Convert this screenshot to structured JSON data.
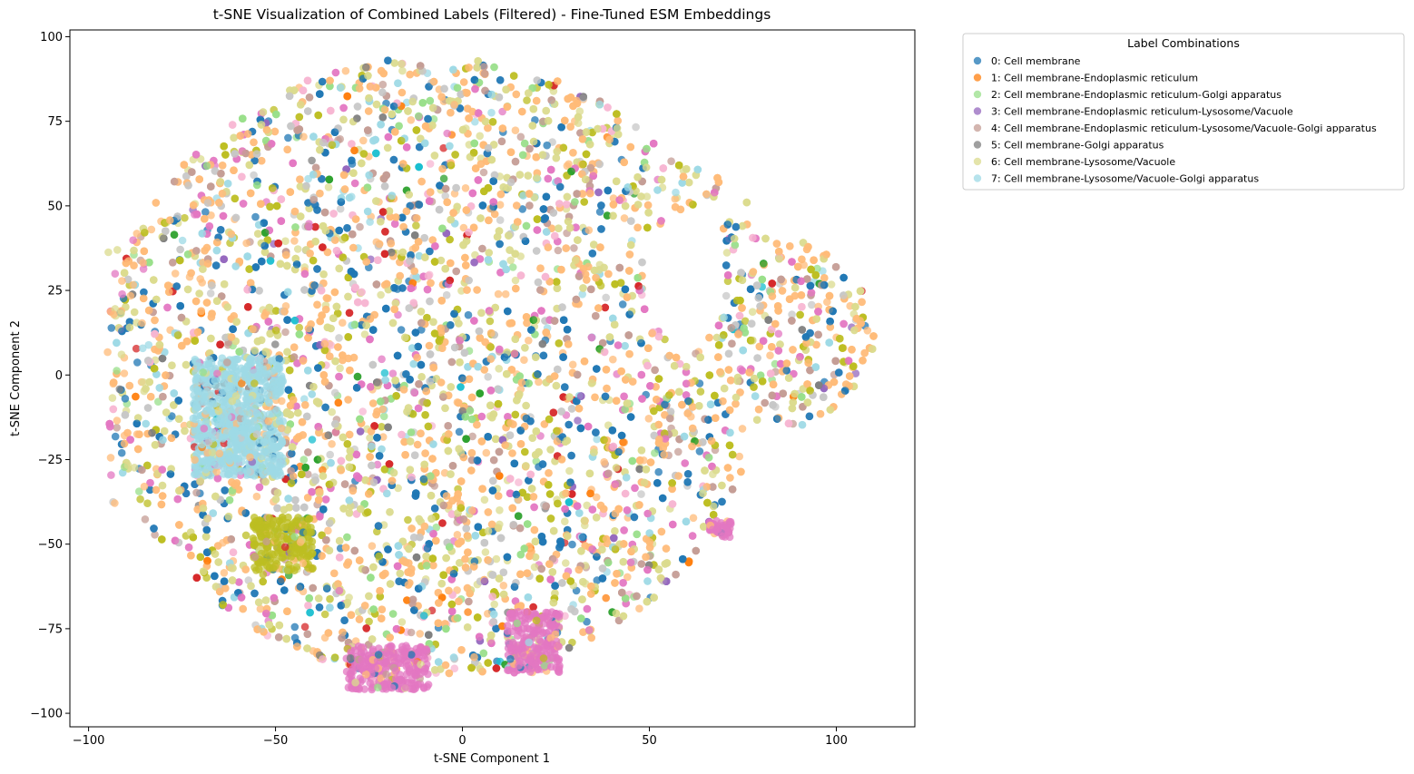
{
  "chart_data": {
    "type": "scatter",
    "title": "t-SNE Visualization of Combined Labels (Filtered) - Fine-Tuned ESM Embeddings",
    "xlabel": "t-SNE Component 1",
    "ylabel": "t-SNE Component 2",
    "xlim": [
      -105,
      121
    ],
    "ylim": [
      -104,
      102
    ],
    "xticks": [
      -100,
      -50,
      0,
      50,
      100
    ],
    "xtick_labels": [
      "−100",
      "−50",
      "0",
      "50",
      "100"
    ],
    "yticks": [
      -100,
      -75,
      -50,
      -25,
      0,
      25,
      50,
      75,
      100
    ],
    "ytick_labels": [
      "−100",
      "−75",
      "−50",
      "−25",
      "0",
      "25",
      "50",
      "75",
      "100"
    ],
    "grid": false,
    "legend": {
      "title": "Label Combinations",
      "placement": "outside upper right",
      "entries": [
        {
          "label": "0: Cell membrane",
          "color": "#1f77b4"
        },
        {
          "label": "1: Cell membrane-Endoplasmic reticulum",
          "color": "#ff7f0e"
        },
        {
          "label": "2: Cell membrane-Endoplasmic reticulum-Golgi apparatus",
          "color": "#98df8a"
        },
        {
          "label": "3: Cell membrane-Endoplasmic reticulum-Lysosome/Vacuole",
          "color": "#9467bd"
        },
        {
          "label": "4: Cell membrane-Endoplasmic reticulum-Lysosome/Vacuole-Golgi apparatus",
          "color": "#c49c94"
        },
        {
          "label": "5: Cell membrane-Golgi apparatus",
          "color": "#7f7f7f"
        },
        {
          "label": "6: Cell membrane-Lysosome/Vacuole",
          "color": "#dbdb8d"
        },
        {
          "label": "7: Cell membrane-Lysosome/Vacuole-Golgi apparatus",
          "color": "#9edae5"
        }
      ]
    },
    "extra_point_colors": [
      "#ffbb78",
      "#e377c2",
      "#bcbd22",
      "#d62728",
      "#2ca02c",
      "#17becf",
      "#f7b6d2",
      "#c7c7c7"
    ],
    "point_alpha": 0.75,
    "clusters": [
      {
        "label": "main cloud",
        "center": [
          -5,
          0
        ],
        "extent_x": [
          -92,
          110
        ],
        "extent_y": [
          -92,
          93
        ],
        "mix": "all"
      },
      {
        "label": "pink island bottom-left",
        "center": [
          -21,
          -87
        ],
        "extent_x": [
          -31,
          -9
        ],
        "extent_y": [
          -93,
          -80
        ],
        "dominant_color": "#e377c2"
      },
      {
        "label": "pink island bottom-middle",
        "center": [
          18,
          -80
        ],
        "extent_x": [
          12,
          26
        ],
        "extent_y": [
          -88,
          -70
        ],
        "dominant_color": "#e377c2"
      },
      {
        "label": "pink island right",
        "center": [
          69,
          -45
        ],
        "extent_x": [
          66,
          72
        ],
        "extent_y": [
          -48,
          -43
        ],
        "dominant_color": "#e377c2"
      },
      {
        "label": "olive cluster left",
        "center": [
          -48,
          -50
        ],
        "extent_x": [
          -56,
          -40
        ],
        "extent_y": [
          -58,
          -42
        ],
        "dominant_color": "#bcbd22"
      },
      {
        "label": "light blue cluster left",
        "center": [
          -60,
          -15
        ],
        "extent_x": [
          -72,
          -48
        ],
        "extent_y": [
          -30,
          5
        ],
        "dominant_color": "#9edae5"
      }
    ]
  }
}
